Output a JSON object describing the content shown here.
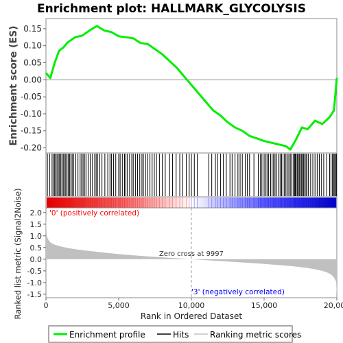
{
  "chart_data": {
    "type": "line",
    "title": "Enrichment plot: HALLMARK_GLYCOLYSIS",
    "top_panel": {
      "ylabel": "Enrichment score (ES)",
      "ylim": [
        -0.215,
        0.18
      ],
      "yticks": [
        0.15,
        0.1,
        0.05,
        0.0,
        -0.05,
        -0.1,
        -0.15,
        -0.2
      ],
      "ytick_labels": [
        "0.15",
        "0.10",
        "0.05",
        "0.00",
        "-0.05",
        "-0.10",
        "-0.15",
        "-0.20"
      ],
      "series_color": "#00ee00",
      "x": [
        0,
        300,
        600,
        900,
        1200,
        1500,
        2000,
        2500,
        3000,
        3500,
        4000,
        4500,
        5000,
        5500,
        6000,
        6500,
        7000,
        7500,
        8000,
        8500,
        9000,
        9500,
        10000,
        10500,
        11000,
        11500,
        12000,
        12500,
        13000,
        13500,
        14000,
        14500,
        15000,
        15500,
        16000,
        16500,
        16800,
        17200,
        17600,
        18000,
        18500,
        19000,
        19500,
        19800,
        20000
      ],
      "es": [
        0.02,
        0.005,
        0.05,
        0.085,
        0.095,
        0.11,
        0.125,
        0.13,
        0.145,
        0.158,
        0.145,
        0.14,
        0.128,
        0.125,
        0.122,
        0.108,
        0.105,
        0.09,
        0.075,
        0.055,
        0.035,
        0.01,
        -0.015,
        -0.04,
        -0.065,
        -0.09,
        -0.105,
        -0.125,
        -0.14,
        -0.15,
        -0.165,
        -0.172,
        -0.18,
        -0.185,
        -0.19,
        -0.195,
        -0.205,
        -0.175,
        -0.14,
        -0.145,
        -0.12,
        -0.13,
        -0.11,
        -0.09,
        0.005
      ]
    },
    "hits": {
      "color": "#000000",
      "positions": [
        100,
        250,
        420,
        520,
        600,
        680,
        760,
        850,
        930,
        1020,
        1100,
        1190,
        1280,
        1360,
        1450,
        1540,
        1620,
        1710,
        1800,
        1900,
        2050,
        2200,
        2350,
        2450,
        2550,
        2650,
        2750,
        2900,
        3050,
        3200,
        3350,
        3450,
        3550,
        3700,
        3850,
        4050,
        4250,
        4400,
        4500,
        4650,
        4800,
        5000,
        5100,
        5250,
        5400,
        5500,
        5600,
        5750,
        5900,
        6000,
        6150,
        6300,
        6450,
        6600,
        6700,
        6850,
        7000,
        7150,
        7300,
        7450,
        7600,
        7800,
        8000,
        8200,
        8500,
        8700,
        8950,
        9200,
        9400,
        9650,
        9850,
        10000,
        10200,
        10400,
        11200,
        11400,
        11650,
        11800,
        12000,
        12200,
        12400,
        12650,
        12800,
        13000,
        13200,
        13350,
        13500,
        13700,
        13850,
        14000,
        14300,
        14600,
        14750,
        14850,
        15000,
        15100,
        15200,
        15300,
        15450,
        15550,
        15650,
        15750,
        15850,
        16000,
        16100,
        16200,
        16300,
        16400,
        16500,
        16600,
        16700,
        16800,
        16900,
        17000,
        17100,
        17150,
        17200,
        17280,
        17350,
        17420,
        17500,
        17580,
        17650,
        17720,
        17800,
        17880,
        17950,
        18050,
        18200,
        18350,
        18500,
        18650,
        18800,
        18950,
        19100,
        19300,
        19500,
        19600,
        19700,
        19780,
        19850,
        19920,
        19980
      ]
    },
    "heatbar": {
      "zero_cross_rank": 9997,
      "color_positive": "#ff0000",
      "color_negative": "#0000ff"
    },
    "bottom_panel": {
      "ylabel": "Ranked list metric (Signal2Noise)",
      "ylim": [
        -1.65,
        2.2
      ],
      "yticks": [
        2.0,
        1.5,
        1.0,
        0.5,
        0.0,
        -0.5,
        -1.0,
        -1.5
      ],
      "ytick_labels": [
        "2.0",
        "1.5",
        "1.0",
        "0.5",
        "0.0",
        "-0.5",
        "-1.0",
        "-1.5"
      ],
      "fill_color": "#c0c0c0",
      "x": [
        0,
        50,
        150,
        300,
        600,
        1000,
        1500,
        2000,
        3000,
        4000,
        5000,
        6000,
        7000,
        8000,
        9000,
        9997,
        11000,
        12000,
        13000,
        14000,
        15000,
        16000,
        17000,
        17500,
        18000,
        18500,
        19000,
        19300,
        19600,
        19800,
        19950,
        20000
      ],
      "metric": [
        1.9,
        1.0,
        0.85,
        0.72,
        0.62,
        0.55,
        0.48,
        0.43,
        0.35,
        0.28,
        0.22,
        0.17,
        0.12,
        0.08,
        0.04,
        0.0,
        -0.04,
        -0.08,
        -0.12,
        -0.16,
        -0.2,
        -0.25,
        -0.3,
        -0.34,
        -0.38,
        -0.43,
        -0.5,
        -0.56,
        -0.65,
        -0.78,
        -0.95,
        -1.55
      ],
      "zero_cross_label": "Zero cross at 9997",
      "positive_label": "'0' (positively correlated)",
      "negative_label": "'3' (negatively correlated)",
      "positive_label_color": "#ff0000",
      "negative_label_color": "#0000ff"
    },
    "xlabel": "Rank in Ordered Dataset",
    "xlim": [
      0,
      20000
    ],
    "xticks": [
      0,
      5000,
      10000,
      15000,
      20000
    ],
    "xtick_labels": [
      "0",
      "5,000",
      "10,000",
      "15,000",
      "20,000"
    ],
    "legend": {
      "placement": "bottom",
      "entries": [
        {
          "label": "Enrichment profile",
          "color": "#00ee00"
        },
        {
          "label": "Hits",
          "color": "#000000"
        },
        {
          "label": "Ranking metric scores",
          "color": "#c0c0c0"
        }
      ]
    }
  }
}
